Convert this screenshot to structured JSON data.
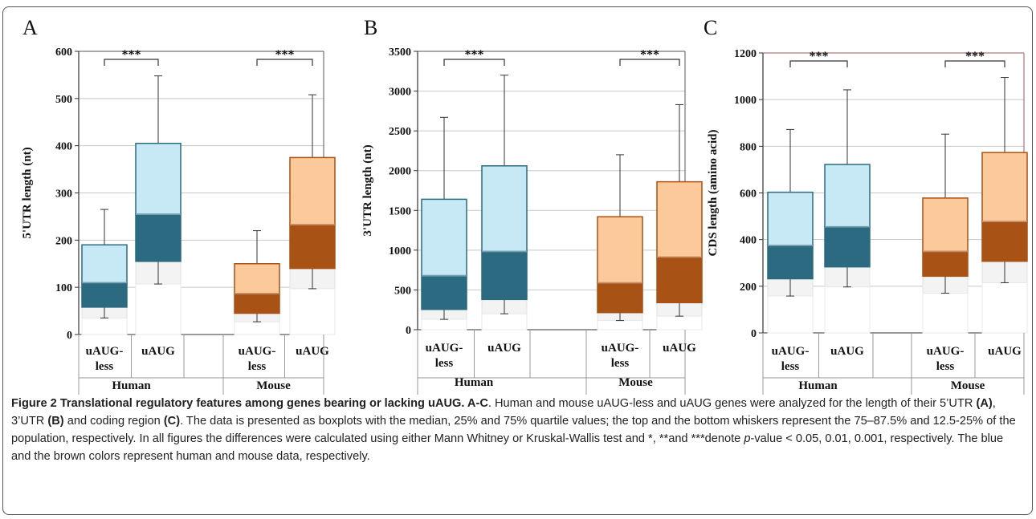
{
  "chart_data": [
    {
      "type": "boxplot",
      "panel_label": "A",
      "ylabel": "5'UTR length (nt)",
      "ylim": [
        0,
        600
      ],
      "yticks": [
        "0",
        "100",
        "200",
        "300",
        "400",
        "500",
        "600"
      ],
      "groups": [
        "Human",
        "Mouse"
      ],
      "categories": [
        "uAUG-\nless",
        "uAUG",
        "uAUG-\nless",
        "uAUG"
      ],
      "species": [
        "human",
        "human",
        "mouse",
        "mouse"
      ],
      "boxes": [
        {
          "whisker_low": 35,
          "q1": 58,
          "median": 110,
          "q3": 190,
          "whisker_high": 265
        },
        {
          "whisker_low": 107,
          "q1": 155,
          "median": 255,
          "q3": 405,
          "whisker_high": 548
        },
        {
          "whisker_low": 27,
          "q1": 45,
          "median": 87,
          "q3": 150,
          "whisker_high": 220
        },
        {
          "whisker_low": 97,
          "q1": 140,
          "median": 233,
          "q3": 375,
          "whisker_high": 508
        }
      ],
      "significance": [
        {
          "label": "***",
          "between": [
            0,
            1
          ]
        },
        {
          "label": "***",
          "between": [
            2,
            3
          ]
        }
      ]
    },
    {
      "type": "boxplot",
      "panel_label": "B",
      "ylabel": "3'UTR length (nt)",
      "ylim": [
        0,
        3500
      ],
      "yticks": [
        "0",
        "500",
        "1000",
        "1500",
        "2000",
        "2500",
        "3000",
        "3500"
      ],
      "groups": [
        "Human",
        "Mouse"
      ],
      "categories": [
        "uAUG-\nless",
        "uAUG",
        "uAUG-\nless",
        "uAUG"
      ],
      "species": [
        "human",
        "human",
        "mouse",
        "mouse"
      ],
      "boxes": [
        {
          "whisker_low": 130,
          "q1": 255,
          "median": 680,
          "q3": 1640,
          "whisker_high": 2670
        },
        {
          "whisker_low": 200,
          "q1": 380,
          "median": 985,
          "q3": 2060,
          "whisker_high": 3200
        },
        {
          "whisker_low": 115,
          "q1": 215,
          "median": 590,
          "q3": 1420,
          "whisker_high": 2200
        },
        {
          "whisker_low": 170,
          "q1": 340,
          "median": 915,
          "q3": 1860,
          "whisker_high": 2830
        }
      ],
      "significance": [
        {
          "label": "***",
          "between": [
            0,
            1
          ]
        },
        {
          "label": "***",
          "between": [
            2,
            3
          ]
        }
      ]
    },
    {
      "type": "boxplot",
      "panel_label": "C",
      "ylabel": "CDS length (amino acid)",
      "ylim": [
        0,
        1200
      ],
      "yticks": [
        "0",
        "200",
        "400",
        "600",
        "800",
        "1000",
        "1200"
      ],
      "groups": [
        "Human",
        "Mouse"
      ],
      "categories": [
        "uAUG-\nless",
        "uAUG",
        "uAUG-\nless",
        "uAUG"
      ],
      "species": [
        "human",
        "human",
        "mouse",
        "mouse"
      ],
      "boxes": [
        {
          "whisker_low": 158,
          "q1": 232,
          "median": 375,
          "q3": 603,
          "whisker_high": 872
        },
        {
          "whisker_low": 197,
          "q1": 283,
          "median": 455,
          "q3": 722,
          "whisker_high": 1042
        },
        {
          "whisker_low": 170,
          "q1": 243,
          "median": 350,
          "q3": 578,
          "whisker_high": 852
        },
        {
          "whisker_low": 215,
          "q1": 307,
          "median": 478,
          "q3": 773,
          "whisker_high": 1095
        }
      ],
      "significance": [
        {
          "label": "***",
          "between": [
            0,
            1
          ]
        },
        {
          "label": "***",
          "between": [
            2,
            3
          ]
        }
      ]
    }
  ],
  "colors": {
    "human_upper": "#c7e9f5",
    "human_lower": "#2b6a80",
    "mouse_upper": "#fbc99a",
    "mouse_lower": "#a85215",
    "grid": "#c8c8c8"
  },
  "caption": {
    "title": "Figure 2 Translational regulatory features among genes bearing or lacking uAUG. A-C",
    "t1": ". Human and mouse uAUG-less and uAUG genes were analyzed for the length of their 5’UTR ",
    "b1": "(A)",
    "t2": ", 3’UTR ",
    "b2": "(B)",
    "t3": " and coding region ",
    "b3": "(C)",
    "t4": ". The data is presented as boxplots with the median, 25% and 75% quartile values; the top and the bottom whiskers represent the 75–87.5% and 12.5-25% of the population, respectively. In all figures the differences were calculated using either Mann Whitney or Kruskal-Wallis test and *, **and ***denote ",
    "i1": "p",
    "t5": "-value < 0.05, 0.01, 0.001, respectively. The blue and the brown colors represent human and mouse data, respectively."
  }
}
